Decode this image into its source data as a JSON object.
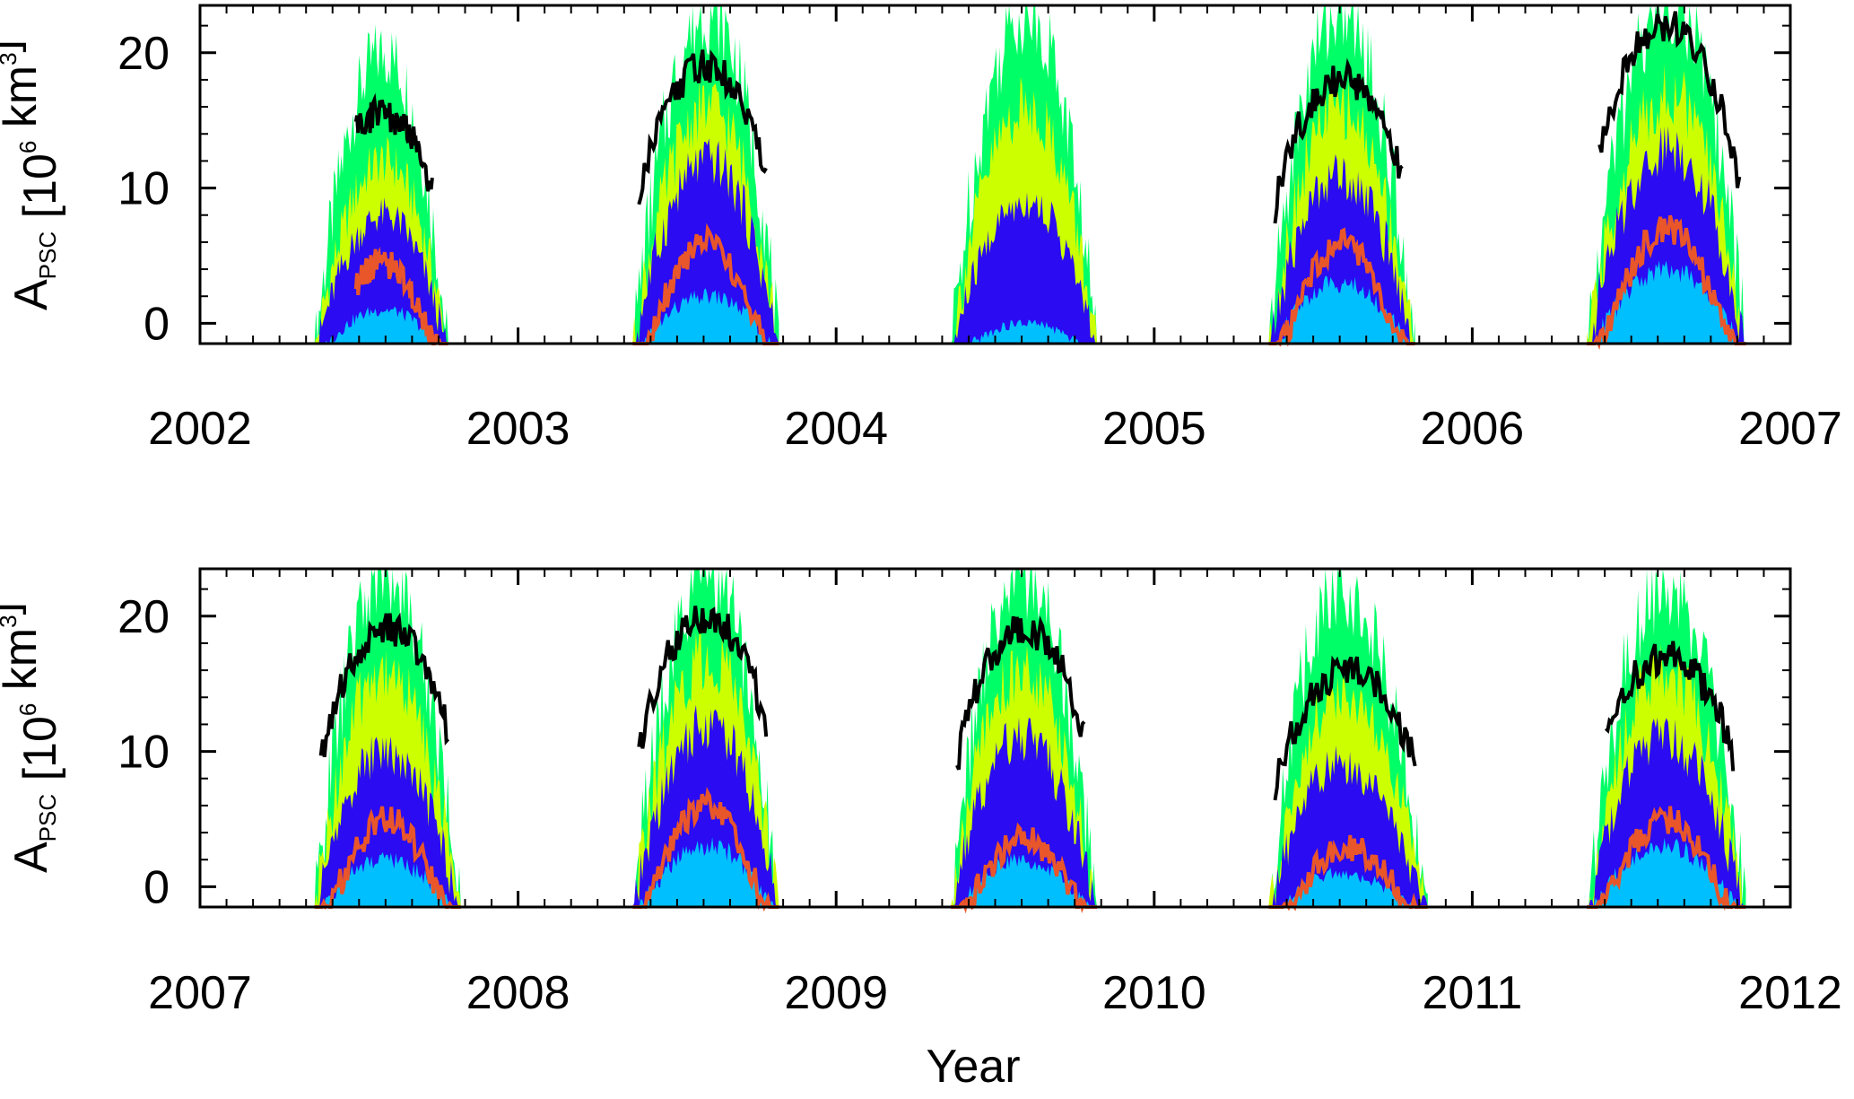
{
  "chart_data": [
    {
      "type": "area",
      "panel": "top",
      "ylabel_main": "A",
      "ylabel_sub": "PSC",
      "ylabel_units_pre": " [10",
      "ylabel_units_exp": "6",
      "ylabel_units_mid": " km",
      "ylabel_units_exp2": "3",
      "ylabel_units_post": "]",
      "xlabel": "",
      "x_ticks": [
        "2002",
        "2003",
        "2004",
        "2005",
        "2006",
        "2007"
      ],
      "xlim": [
        2002,
        2007
      ],
      "y_ticks": [
        "0",
        "10",
        "20"
      ],
      "ylim": [
        0,
        25
      ],
      "series_colors": [
        "#00ff66",
        "#ccff00",
        "#2a0bf2",
        "#00bfff",
        "#000000",
        "#e8562a"
      ],
      "seasons": [
        {
          "start": 2002.36,
          "end": 2002.78,
          "peak": 2002.58,
          "green": 23,
          "yellow": 15,
          "blue": 11,
          "cyan": 4,
          "black": {
            "start": 2002.49,
            "end": 2002.73,
            "peak": 18.5
          },
          "red": {
            "start": 2002.49,
            "end": 2002.78,
            "peak": 7.5
          }
        },
        {
          "start": 2003.36,
          "end": 2003.82,
          "peak": 2003.6,
          "green": 26,
          "yellow": 19,
          "blue": 15,
          "cyan": 5,
          "black": {
            "start": 2003.38,
            "end": 2003.78,
            "peak": 22
          },
          "red": {
            "start": 2003.36,
            "end": 2003.82,
            "peak": 9
          }
        },
        {
          "start": 2004.36,
          "end": 2004.82,
          "peak": 2004.6,
          "green": 26,
          "yellow": 19,
          "blue": 12,
          "cyan": 3,
          "black": null,
          "red": null
        },
        {
          "start": 2005.36,
          "end": 2005.82,
          "peak": 2005.58,
          "green": 26,
          "yellow": 19,
          "blue": 14,
          "cyan": 6,
          "black": {
            "start": 2005.38,
            "end": 2005.78,
            "peak": 21
          },
          "red": {
            "start": 2005.36,
            "end": 2005.82,
            "peak": 9
          }
        },
        {
          "start": 2006.36,
          "end": 2006.86,
          "peak": 2006.62,
          "green": 27,
          "yellow": 20,
          "blue": 16,
          "cyan": 7,
          "black": {
            "start": 2006.4,
            "end": 2006.84,
            "peak": 25
          },
          "red": {
            "start": 2006.36,
            "end": 2006.86,
            "peak": 10
          }
        }
      ]
    },
    {
      "type": "area",
      "panel": "bottom",
      "ylabel_main": "A",
      "ylabel_sub": "PSC",
      "ylabel_units_pre": " [10",
      "ylabel_units_exp": "6",
      "ylabel_units_mid": " km",
      "ylabel_units_exp2": "3",
      "ylabel_units_post": "]",
      "xlabel": "Year",
      "x_ticks": [
        "2007",
        "2008",
        "2009",
        "2010",
        "2011",
        "2012"
      ],
      "xlim": [
        2007,
        2012
      ],
      "y_ticks": [
        "0",
        "10",
        "20"
      ],
      "ylim": [
        0,
        25
      ],
      "series_colors": [
        "#00ff66",
        "#ccff00",
        "#2a0bf2",
        "#00bfff",
        "#000000",
        "#e8562a"
      ],
      "seasons": [
        {
          "start": 2007.36,
          "end": 2007.82,
          "peak": 2007.58,
          "green": 26,
          "yellow": 19,
          "blue": 13,
          "cyan": 5,
          "black": {
            "start": 2007.38,
            "end": 2007.78,
            "peak": 22
          },
          "red": {
            "start": 2007.36,
            "end": 2007.82,
            "peak": 8
          }
        },
        {
          "start": 2008.36,
          "end": 2008.82,
          "peak": 2008.6,
          "green": 26,
          "yellow": 20,
          "blue": 15,
          "cyan": 6,
          "black": {
            "start": 2008.38,
            "end": 2008.78,
            "peak": 23
          },
          "red": {
            "start": 2008.36,
            "end": 2008.82,
            "peak": 9
          }
        },
        {
          "start": 2009.36,
          "end": 2009.82,
          "peak": 2009.58,
          "green": 26,
          "yellow": 19,
          "blue": 14,
          "cyan": 5,
          "black": {
            "start": 2009.38,
            "end": 2009.78,
            "peak": 22
          },
          "red": {
            "start": 2009.36,
            "end": 2009.82,
            "peak": 6.5
          }
        },
        {
          "start": 2010.36,
          "end": 2010.86,
          "peak": 2010.58,
          "green": 25,
          "yellow": 17,
          "blue": 12,
          "cyan": 4,
          "black": {
            "start": 2010.38,
            "end": 2010.82,
            "peak": 19
          },
          "red": {
            "start": 2010.36,
            "end": 2010.86,
            "peak": 6
          }
        },
        {
          "start": 2011.36,
          "end": 2011.86,
          "peak": 2011.6,
          "green": 25,
          "yellow": 19,
          "blue": 14,
          "cyan": 6,
          "black": {
            "start": 2011.42,
            "end": 2011.82,
            "peak": 20
          },
          "red": {
            "start": 2011.36,
            "end": 2011.86,
            "peak": 8
          }
        }
      ]
    }
  ]
}
